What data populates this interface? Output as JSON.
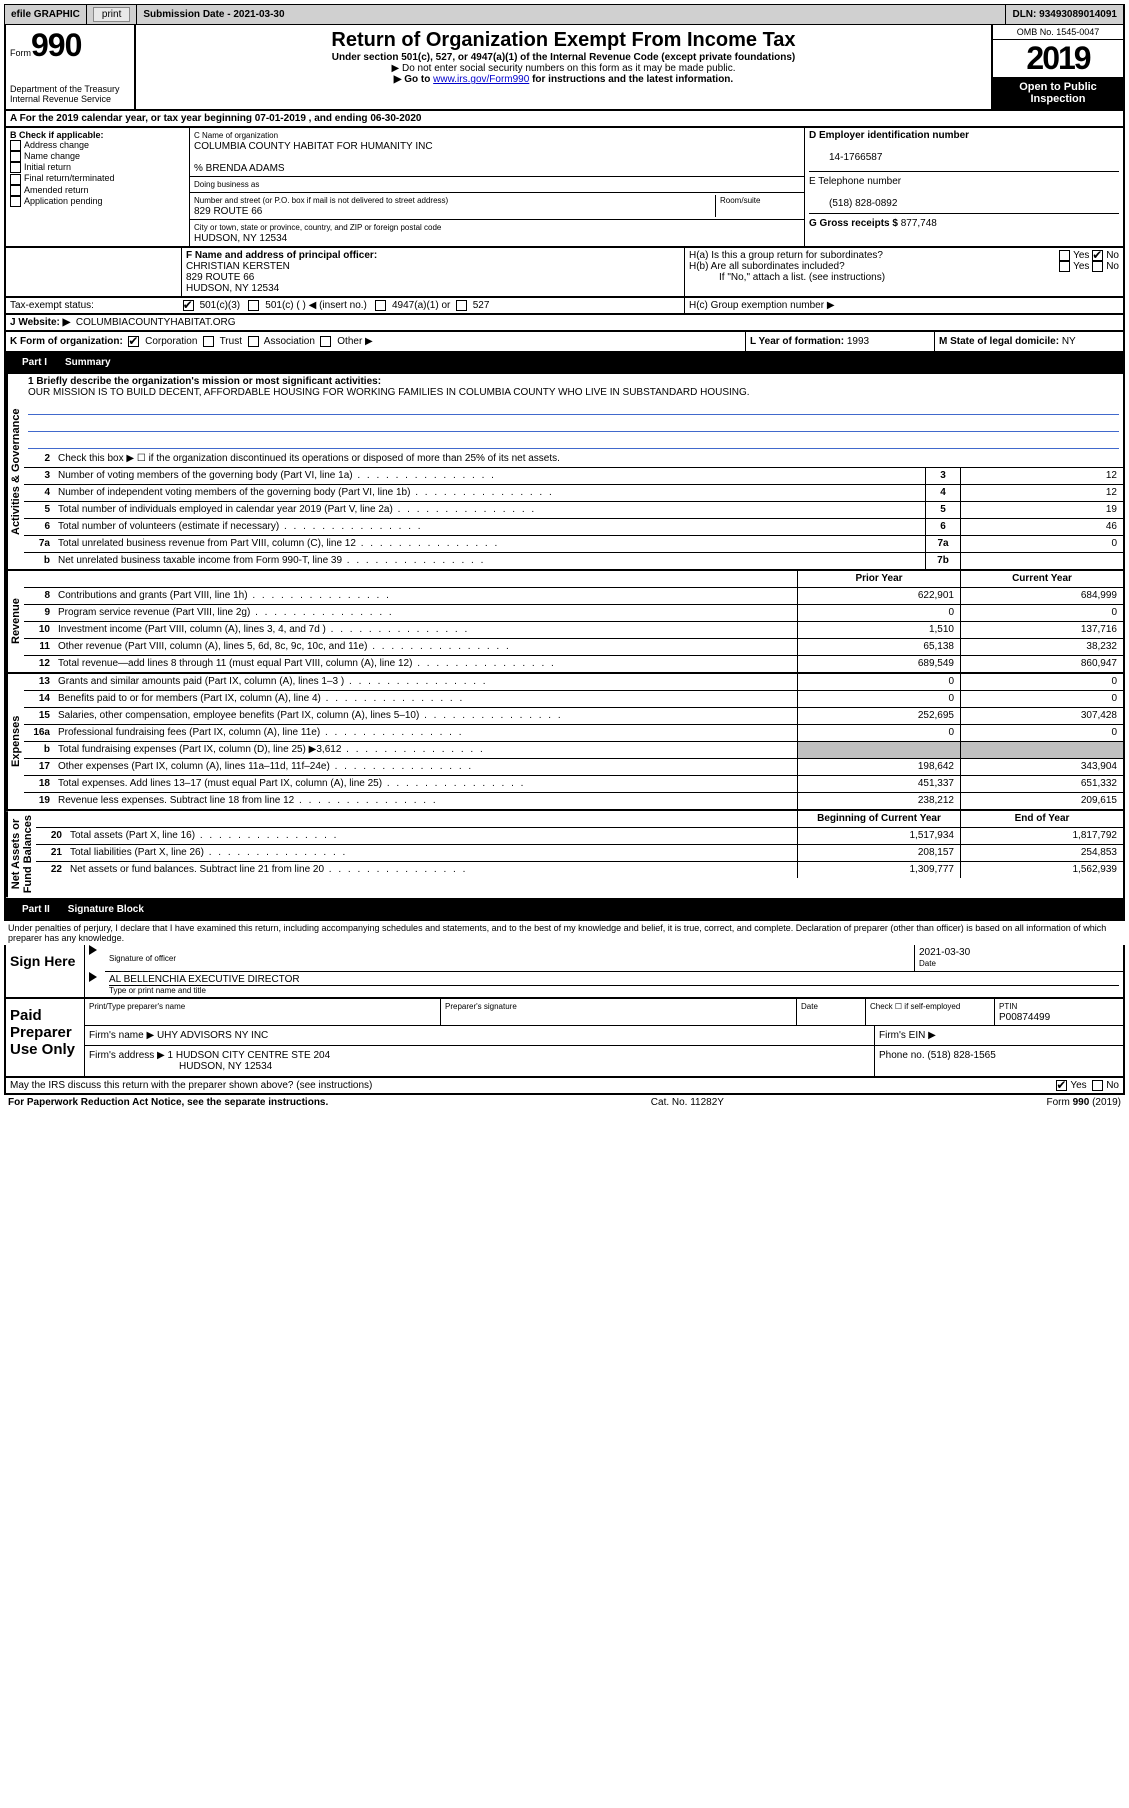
{
  "topbar": {
    "efile": "efile GRAPHIC",
    "print": "print",
    "sub_label": "Submission Date - 2021-03-30",
    "dln": "DLN: 93493089014091"
  },
  "header": {
    "form_word": "Form",
    "form_num": "990",
    "dept": "Department of the Treasury\nInternal Revenue Service",
    "title": "Return of Organization Exempt From Income Tax",
    "sub": "Under section 501(c), 527, or 4947(a)(1) of the Internal Revenue Code (except private foundations)",
    "arrow1": "▶ Do not enter social security numbers on this form as it may be made public.",
    "arrow2_pre": "▶ Go to ",
    "arrow2_link": "www.irs.gov/Form990",
    "arrow2_post": " for instructions and the latest information.",
    "omb": "OMB No. 1545-0047",
    "year": "2019",
    "open1": "Open to Public",
    "open2": "Inspection"
  },
  "period": "A For the 2019 calendar year, or tax year beginning 07-01-2019    , and ending 06-30-2020",
  "box_b": {
    "title": "B Check if applicable:",
    "opts": [
      "Address change",
      "Name change",
      "Initial return",
      "Final return/terminated",
      "Amended return",
      "Application pending"
    ]
  },
  "box_c": {
    "label": "C Name of organization",
    "name": "COLUMBIA COUNTY HABITAT FOR HUMANITY INC",
    "care": "% BRENDA ADAMS",
    "dba_label": "Doing business as",
    "addr_label": "Number and street (or P.O. box if mail is not delivered to street address)",
    "room": "Room/suite",
    "addr": "829 ROUTE 66",
    "city_label": "City or town, state or province, country, and ZIP or foreign postal code",
    "city": "HUDSON, NY  12534"
  },
  "box_d": {
    "label": "D Employer identification number",
    "val": "14-1766587"
  },
  "box_e": {
    "label": "E Telephone number",
    "val": "(518) 828-0892"
  },
  "box_g": {
    "label": "G Gross receipts $",
    "val": "877,748"
  },
  "box_f": {
    "label": "F  Name and address of principal officer:",
    "name": "CHRISTIAN KERSTEN",
    "addr": "829 ROUTE 66",
    "city": "HUDSON, NY  12534"
  },
  "box_h": {
    "a": "H(a)  Is this a group return for subordinates?",
    "b": "H(b)  Are all subordinates included?",
    "note": "If \"No,\" attach a list. (see instructions)",
    "c": "H(c)  Group exemption number ▶",
    "yes": "Yes",
    "no": "No"
  },
  "tax_status": {
    "label": "Tax-exempt status:",
    "o1": "501(c)(3)",
    "o2": "501(c) (  ) ◀ (insert no.)",
    "o3": "4947(a)(1) or",
    "o4": "527"
  },
  "box_i": {
    "label": "I",
    "text": "501(c)(3)"
  },
  "box_j": {
    "label": "J Website: ▶",
    "val": "COLUMBIACOUNTYHABITAT.ORG"
  },
  "box_k": {
    "label": "K Form of organization:",
    "opts": [
      "Corporation",
      "Trust",
      "Association",
      "Other ▶"
    ]
  },
  "box_l": {
    "label": "L Year of formation:",
    "val": "1993"
  },
  "box_m": {
    "label": "M State of legal domicile:",
    "val": "NY"
  },
  "part1": {
    "label": "Part I",
    "title": "Summary"
  },
  "mission": {
    "prompt": "1  Briefly describe the organization's mission or most significant activities:",
    "text": "OUR MISSION IS TO BUILD DECENT, AFFORDABLE HOUSING FOR WORKING FAMILIES IN COLUMBIA COUNTY WHO LIVE IN SUBSTANDARD HOUSING."
  },
  "gov_lines": [
    {
      "n": "2",
      "t": "Check this box ▶ ☐  if the organization discontinued its operations or disposed of more than 25% of its net assets."
    },
    {
      "n": "3",
      "t": "Number of voting members of the governing body (Part VI, line 1a)",
      "box": "3",
      "v": "12"
    },
    {
      "n": "4",
      "t": "Number of independent voting members of the governing body (Part VI, line 1b)",
      "box": "4",
      "v": "12"
    },
    {
      "n": "5",
      "t": "Total number of individuals employed in calendar year 2019 (Part V, line 2a)",
      "box": "5",
      "v": "19"
    },
    {
      "n": "6",
      "t": "Total number of volunteers (estimate if necessary)",
      "box": "6",
      "v": "46"
    },
    {
      "n": "7a",
      "t": "Total unrelated business revenue from Part VIII, column (C), line 12",
      "box": "7a",
      "v": "0"
    },
    {
      "n": "b",
      "t": "Net unrelated business taxable income from Form 990-T, line 39",
      "box": "7b",
      "v": ""
    }
  ],
  "col_headers": {
    "py": "Prior Year",
    "cy": "Current Year"
  },
  "rev_lines": [
    {
      "n": "8",
      "t": "Contributions and grants (Part VIII, line 1h)",
      "py": "622,901",
      "cy": "684,999"
    },
    {
      "n": "9",
      "t": "Program service revenue (Part VIII, line 2g)",
      "py": "0",
      "cy": "0"
    },
    {
      "n": "10",
      "t": "Investment income (Part VIII, column (A), lines 3, 4, and 7d )",
      "py": "1,510",
      "cy": "137,716"
    },
    {
      "n": "11",
      "t": "Other revenue (Part VIII, column (A), lines 5, 6d, 8c, 9c, 10c, and 11e)",
      "py": "65,138",
      "cy": "38,232"
    },
    {
      "n": "12",
      "t": "Total revenue—add lines 8 through 11 (must equal Part VIII, column (A), line 12)",
      "py": "689,549",
      "cy": "860,947"
    }
  ],
  "exp_lines": [
    {
      "n": "13",
      "t": "Grants and similar amounts paid (Part IX, column (A), lines 1–3 )",
      "py": "0",
      "cy": "0"
    },
    {
      "n": "14",
      "t": "Benefits paid to or for members (Part IX, column (A), line 4)",
      "py": "0",
      "cy": "0"
    },
    {
      "n": "15",
      "t": "Salaries, other compensation, employee benefits (Part IX, column (A), lines 5–10)",
      "py": "252,695",
      "cy": "307,428"
    },
    {
      "n": "16a",
      "t": "Professional fundraising fees (Part IX, column (A), line 11e)",
      "py": "0",
      "cy": "0"
    },
    {
      "n": "b",
      "t": "Total fundraising expenses (Part IX, column (D), line 25) ▶3,612",
      "py": "GRAY",
      "cy": "GRAY"
    },
    {
      "n": "17",
      "t": "Other expenses (Part IX, column (A), lines 11a–11d, 11f–24e)",
      "py": "198,642",
      "cy": "343,904"
    },
    {
      "n": "18",
      "t": "Total expenses. Add lines 13–17 (must equal Part IX, column (A), line 25)",
      "py": "451,337",
      "cy": "651,332"
    },
    {
      "n": "19",
      "t": "Revenue less expenses. Subtract line 18 from line 12",
      "py": "238,212",
      "cy": "209,615"
    }
  ],
  "net_headers": {
    "b": "Beginning of Current Year",
    "e": "End of Year"
  },
  "net_lines": [
    {
      "n": "20",
      "t": "Total assets (Part X, line 16)",
      "py": "1,517,934",
      "cy": "1,817,792"
    },
    {
      "n": "21",
      "t": "Total liabilities (Part X, line 26)",
      "py": "208,157",
      "cy": "254,853"
    },
    {
      "n": "22",
      "t": "Net assets or fund balances. Subtract line 21 from line 20",
      "py": "1,309,777",
      "cy": "1,562,939"
    }
  ],
  "vert": {
    "gov": "Activities & Governance",
    "rev": "Revenue",
    "exp": "Expenses",
    "net": "Net Assets or\nFund Balances"
  },
  "part2": {
    "label": "Part II",
    "title": "Signature Block"
  },
  "penalties": "Under penalties of perjury, I declare that I have examined this return, including accompanying schedules and statements, and to the best of my knowledge and belief, it is true, correct, and complete. Declaration of preparer (other than officer) is based on all information of which preparer has any knowledge.",
  "sign": {
    "here": "Sign Here",
    "sig_label": "Signature of officer",
    "date_label": "Date",
    "date": "2021-03-30",
    "name": "AL BELLENCHIA  EXECUTIVE DIRECTOR",
    "name_label": "Type or print name and title"
  },
  "paid": {
    "label": "Paid Preparer Use Only",
    "print_label": "Print/Type preparer's name",
    "sig_label": "Preparer's signature",
    "date_label": "Date",
    "check_label": "Check ☐ if self-employed",
    "ptin_label": "PTIN",
    "ptin": "P00874499",
    "firm_label": "Firm's name   ▶",
    "firm": "UHY ADVISORS NY INC",
    "ein_label": "Firm's EIN ▶",
    "addr_label": "Firm's address ▶",
    "addr": "1 HUDSON CITY CENTRE STE 204",
    "city": "HUDSON, NY  12534",
    "phone_label": "Phone no.",
    "phone": "(518) 828-1565"
  },
  "discuss": "May the IRS discuss this return with the preparer shown above? (see instructions)",
  "footer": {
    "left": "For Paperwork Reduction Act Notice, see the separate instructions.",
    "mid": "Cat. No. 11282Y",
    "right": "Form 990 (2019)"
  }
}
